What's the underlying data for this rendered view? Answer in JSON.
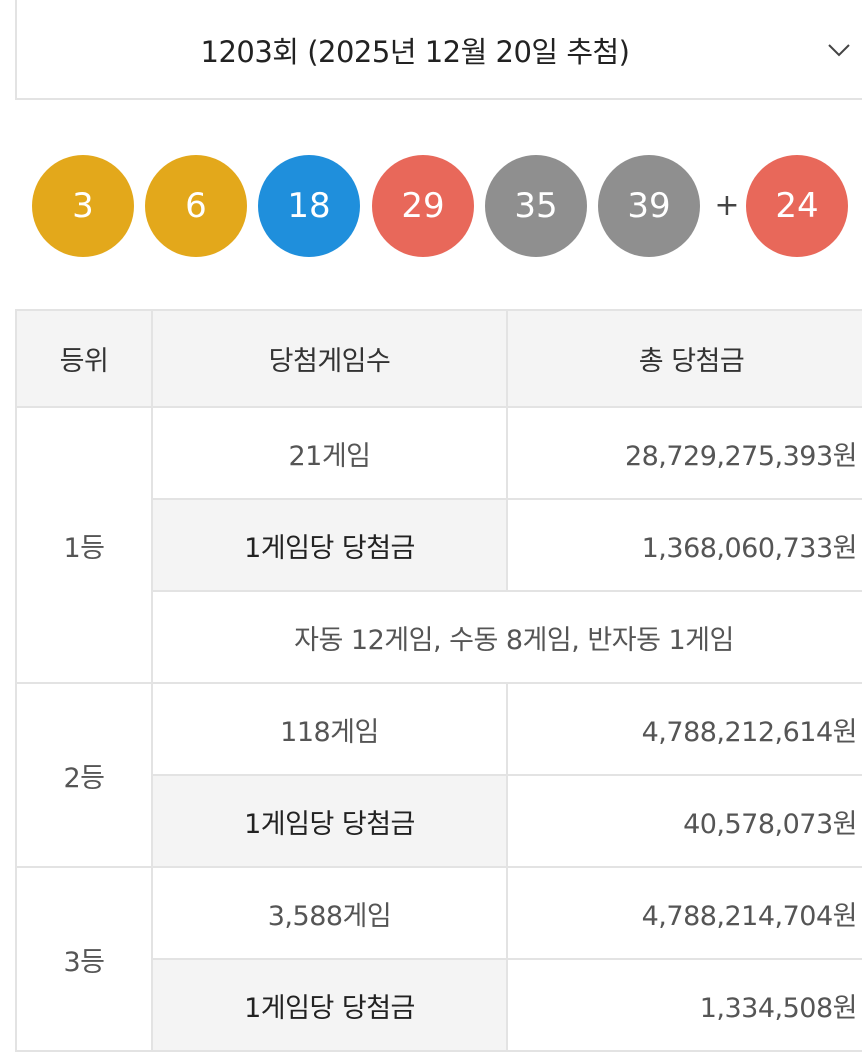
{
  "header": {
    "round_label": "1203회 (2025년 12월 20일 추첨)",
    "dropdown_icon": "chevron-down-icon"
  },
  "numbers": {
    "main": [
      {
        "value": "3",
        "color": "#e3a81b"
      },
      {
        "value": "6",
        "color": "#e3a81b"
      },
      {
        "value": "18",
        "color": "#1f8fdc"
      },
      {
        "value": "29",
        "color": "#e8685a"
      },
      {
        "value": "35",
        "color": "#8f8f8f"
      },
      {
        "value": "39",
        "color": "#8f8f8f"
      }
    ],
    "plus": "+",
    "bonus": {
      "value": "24",
      "color": "#e8685a"
    }
  },
  "table": {
    "headers": [
      "등위",
      "당첨게임수",
      "총 당첨금"
    ],
    "rows": [
      {
        "rank": "1등",
        "games": "21게임",
        "total": "28,729,275,393원",
        "per_game_label": "1게임당 당첨금",
        "per_game": "1,368,060,733원",
        "detail": "자동 12게임, 수동 8게임, 반자동 1게임"
      },
      {
        "rank": "2등",
        "games": "118게임",
        "total": "4,788,212,614원",
        "per_game_label": "1게임당 당첨금",
        "per_game": "40,578,073원"
      },
      {
        "rank": "3등",
        "games": "3,588게임",
        "total": "4,788,214,704원",
        "per_game_label": "1게임당 당첨금",
        "per_game": "1,334,508원"
      }
    ]
  }
}
